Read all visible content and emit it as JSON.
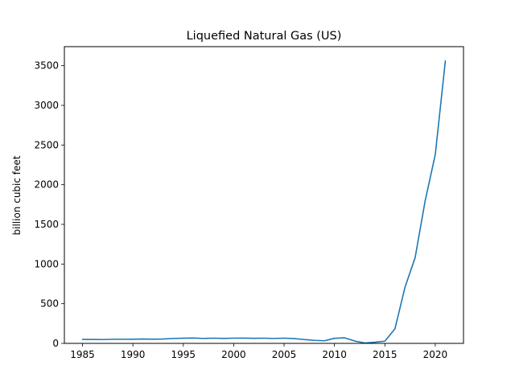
{
  "chart_data": {
    "type": "line",
    "title": "Liquefied Natural Gas (US)",
    "xlabel": "",
    "ylabel": "billion cubic feet",
    "xlim": [
      1983.2,
      2022.8
    ],
    "ylim": [
      0,
      3740
    ],
    "x_ticks": [
      1985,
      1990,
      1995,
      2000,
      2005,
      2010,
      2015,
      2020
    ],
    "y_ticks": [
      0,
      500,
      1000,
      1500,
      2000,
      2500,
      3000,
      3500
    ],
    "grid": false,
    "legend": "none",
    "line_color": "#1f77b4",
    "series": [
      {
        "x": [
          1985,
          1986,
          1987,
          1988,
          1989,
          1990,
          1991,
          1992,
          1993,
          1994,
          1995,
          1996,
          1997,
          1998,
          1999,
          2000,
          2001,
          2002,
          2003,
          2004,
          2005,
          2006,
          2007,
          2008,
          2009,
          2010,
          2011,
          2012,
          2013,
          2014,
          2015,
          2016,
          2017,
          2018,
          2019,
          2020,
          2021
        ],
        "values": [
          50,
          50,
          48,
          52,
          52,
          53,
          55,
          53,
          55,
          62,
          65,
          68,
          62,
          66,
          63,
          66,
          67,
          64,
          66,
          62,
          66,
          60,
          48,
          38,
          33,
          64,
          70,
          30,
          5,
          15,
          28,
          184,
          710,
          1080,
          1800,
          2380,
          3560
        ]
      }
    ]
  }
}
